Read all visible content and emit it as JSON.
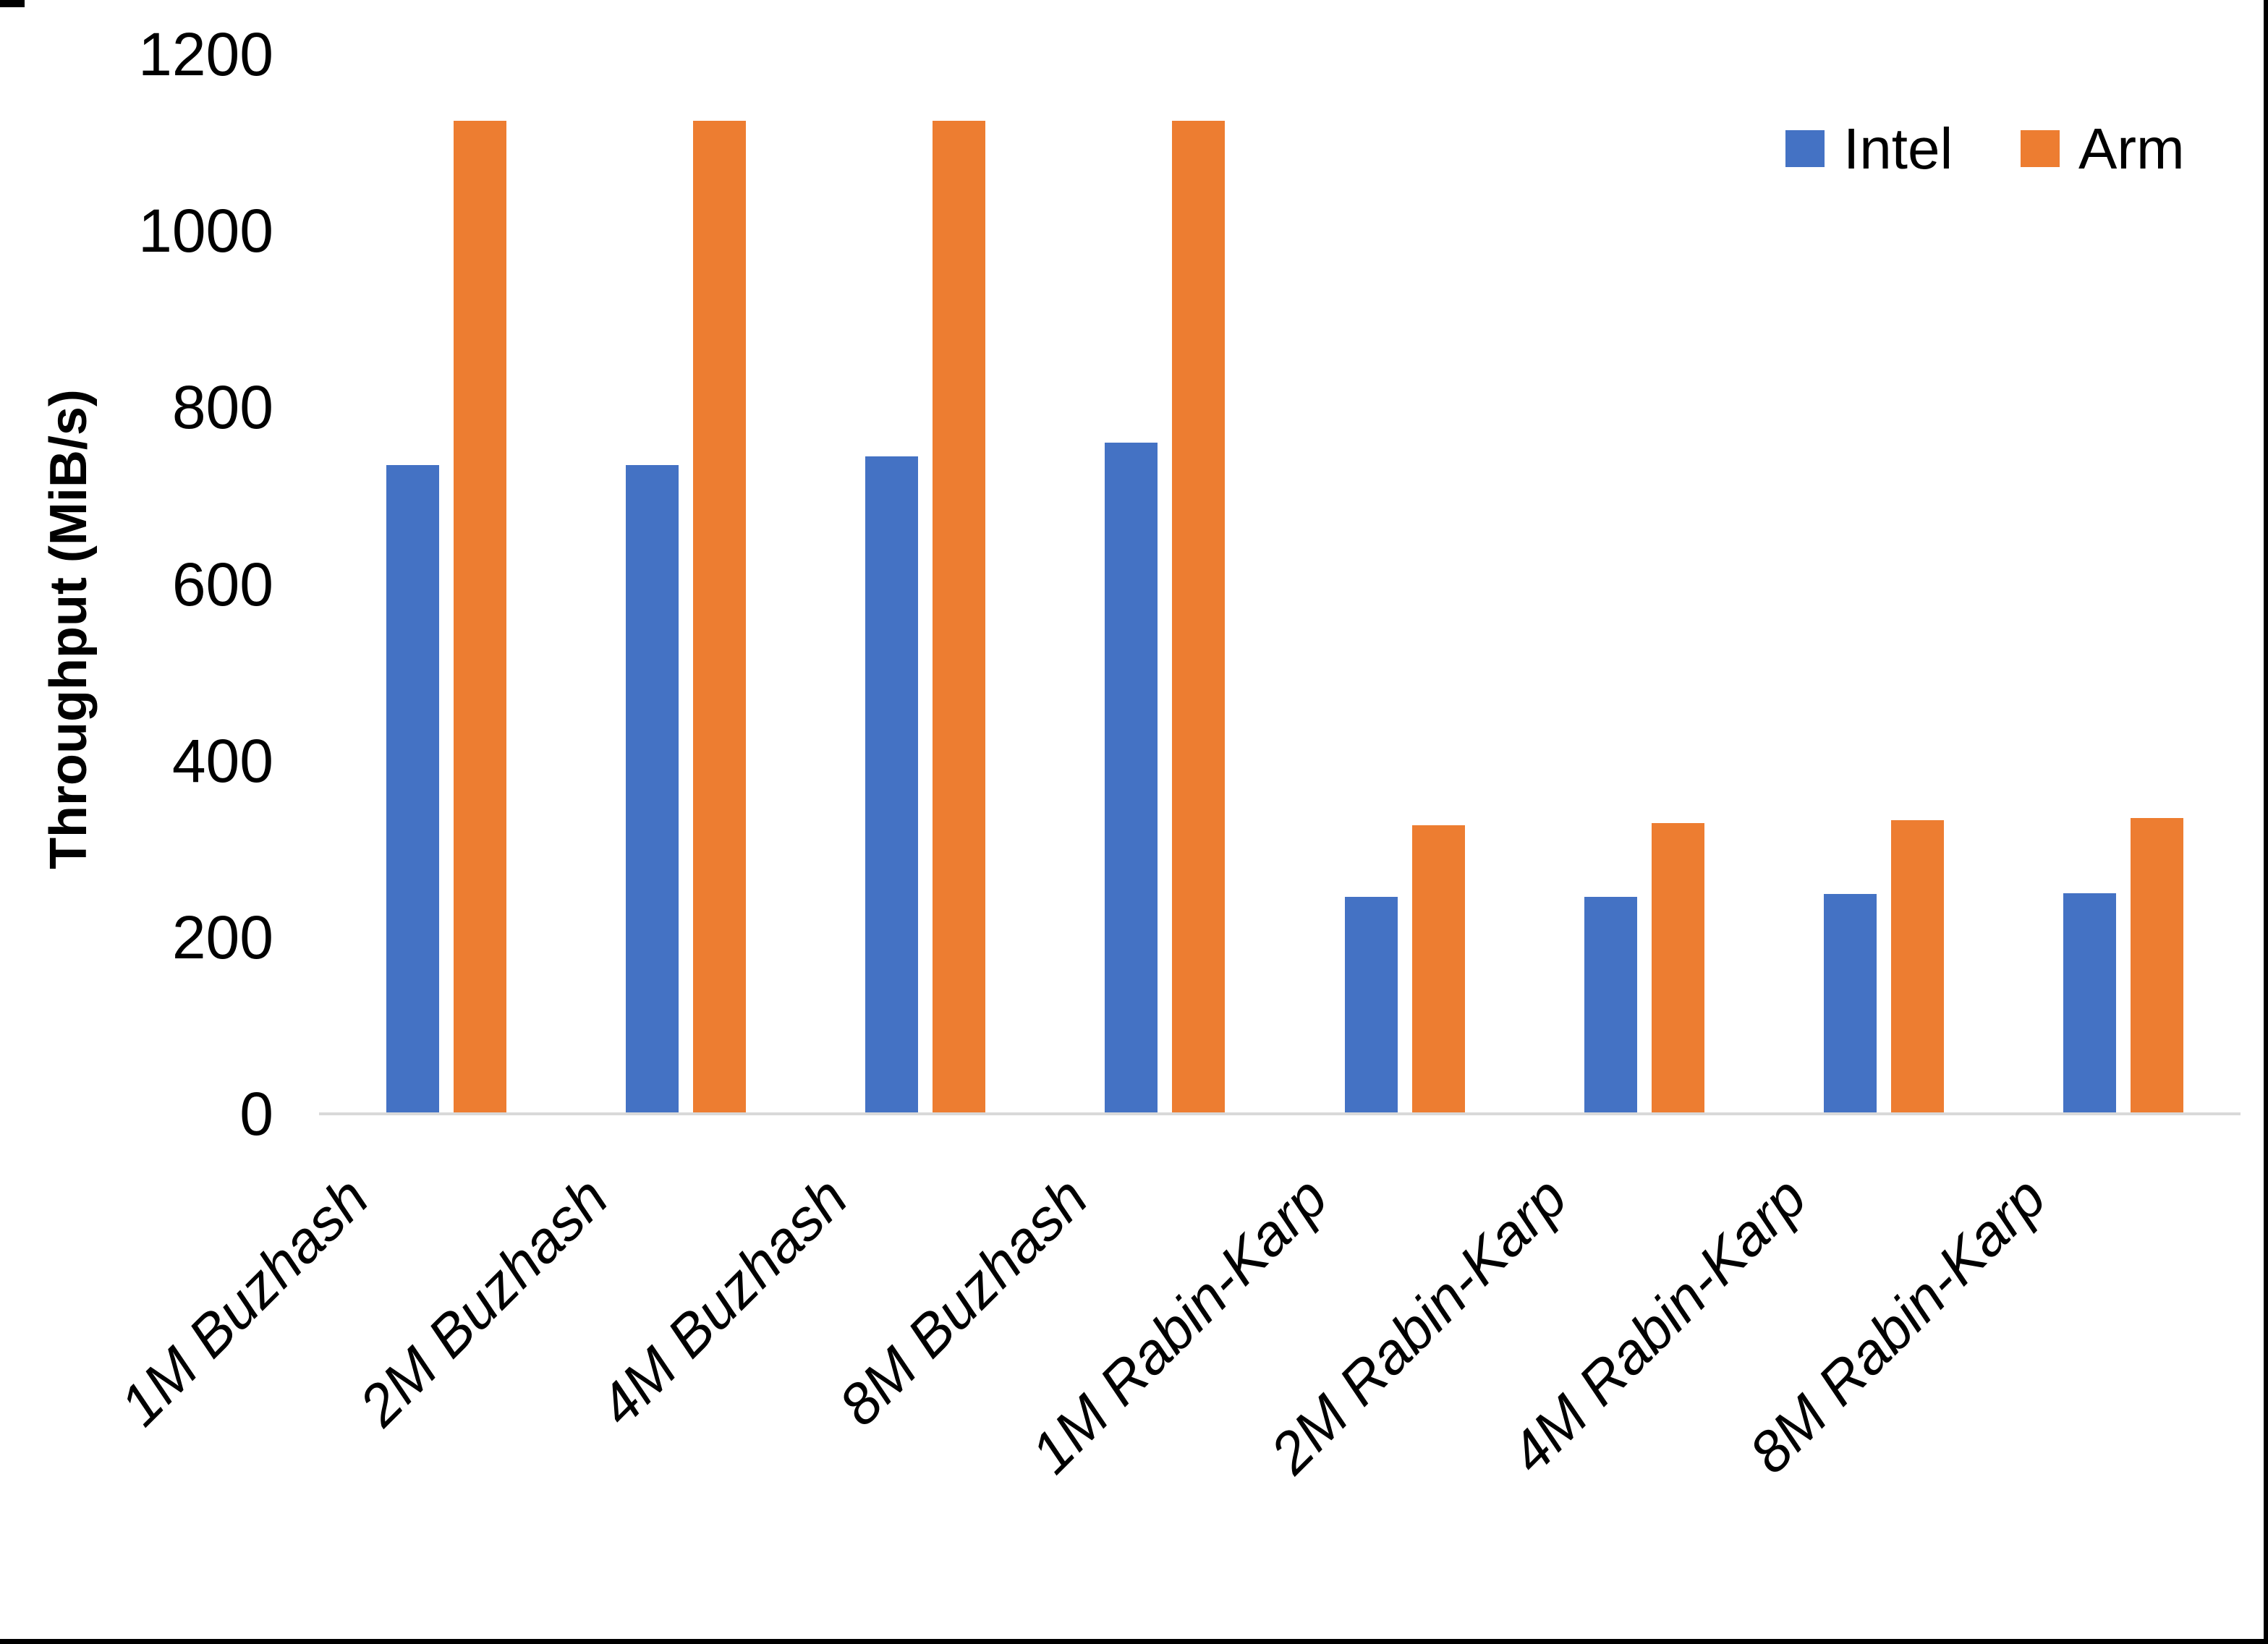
{
  "chart_data": {
    "type": "bar",
    "title": "",
    "xlabel": "",
    "ylabel": "Throughput (MiB/s)",
    "categories": [
      "1M Buzhash",
      "2M Buzhash",
      "4M Buzhash",
      "8M Buzhash",
      "1M Rabin-Karp",
      "2M Rabin-Karp",
      "4M Rabin-Karp",
      "8M Rabin-Karp"
    ],
    "series": [
      {
        "name": "Intel",
        "color": "#4472C4",
        "values": [
          735,
          735,
          745,
          760,
          246,
          246,
          249,
          250
        ]
      },
      {
        "name": "Arm",
        "color": "#ED7D31",
        "values": [
          1125,
          1125,
          1125,
          1125,
          327,
          329,
          333,
          335
        ]
      }
    ],
    "ylim": [
      0,
      1200
    ],
    "yticks": [
      0,
      200,
      400,
      600,
      800,
      1000,
      1200
    ],
    "grid": false,
    "legend_position": "top-right",
    "axis_line_color": "#D9D9D9"
  }
}
